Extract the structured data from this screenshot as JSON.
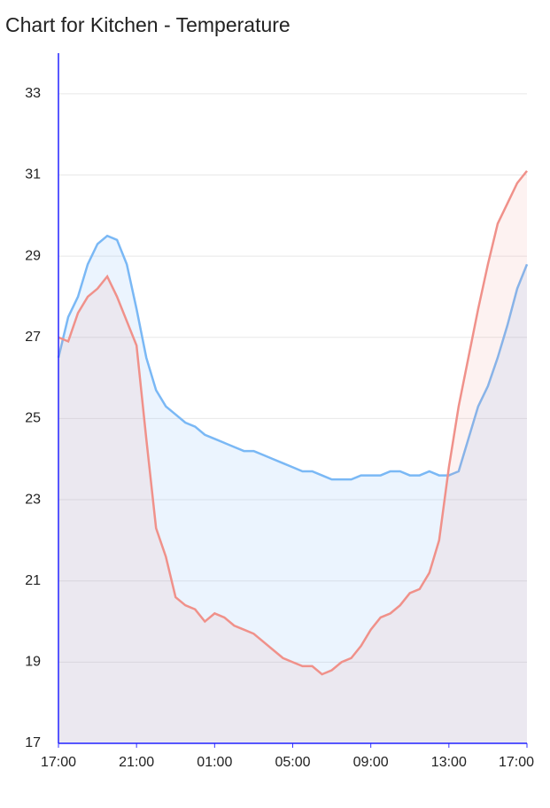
{
  "chart_data": {
    "type": "area",
    "title": "Chart for Kitchen - Temperature",
    "x": [
      0,
      0.5,
      1,
      1.5,
      2,
      2.5,
      3,
      3.5,
      4,
      4.5,
      5,
      5.5,
      6,
      6.5,
      7,
      7.5,
      8,
      8.5,
      9,
      9.5,
      10,
      10.5,
      11,
      11.5,
      12,
      12.5,
      13,
      13.5,
      14,
      14.5,
      15,
      15.5,
      16,
      16.5,
      17,
      17.5,
      18,
      18.5,
      19,
      19.5,
      20,
      20.5,
      21,
      21.5,
      22,
      22.5,
      23,
      23.5,
      24
    ],
    "xlim": [
      0,
      24
    ],
    "xticks": [
      {
        "value": 0,
        "label": "17:00"
      },
      {
        "value": 4,
        "label": "21:00"
      },
      {
        "value": 8,
        "label": "01:00"
      },
      {
        "value": 12,
        "label": "05:00"
      },
      {
        "value": 16,
        "label": "09:00"
      },
      {
        "value": 20,
        "label": "13:00"
      },
      {
        "value": 24,
        "label": "17:00"
      }
    ],
    "ylim": [
      17,
      34
    ],
    "yticks": [
      17,
      19,
      21,
      23,
      25,
      27,
      29,
      31,
      33
    ],
    "grid": true,
    "series": [
      {
        "color": "#7ab8f5",
        "fill": "rgba(122,184,245,0.15)",
        "values": [
          26.5,
          27.5,
          28.0,
          28.8,
          29.3,
          29.5,
          29.4,
          28.8,
          27.7,
          26.5,
          25.7,
          25.3,
          25.1,
          24.9,
          24.8,
          24.6,
          24.5,
          24.4,
          24.3,
          24.2,
          24.2,
          24.1,
          24.0,
          23.9,
          23.8,
          23.7,
          23.7,
          23.6,
          23.5,
          23.5,
          23.5,
          23.6,
          23.6,
          23.6,
          23.7,
          23.7,
          23.6,
          23.6,
          23.7,
          23.6,
          23.6,
          23.7,
          24.5,
          25.3,
          25.8,
          26.5,
          27.3,
          28.2,
          28.8
        ]
      },
      {
        "color": "#f0918a",
        "fill": "rgba(240,145,138,0.12)",
        "values": [
          27.0,
          26.9,
          27.6,
          28.0,
          28.2,
          28.5,
          28.0,
          27.4,
          26.8,
          24.5,
          22.3,
          21.6,
          20.6,
          20.4,
          20.3,
          20.0,
          20.2,
          20.1,
          19.9,
          19.8,
          19.7,
          19.5,
          19.3,
          19.1,
          19.0,
          18.9,
          18.9,
          18.7,
          18.8,
          19.0,
          19.1,
          19.4,
          19.8,
          20.1,
          20.2,
          20.4,
          20.7,
          20.8,
          21.2,
          22.0,
          23.8,
          25.3,
          26.5,
          27.7,
          28.8,
          29.8,
          30.3,
          30.8,
          31.1
        ]
      }
    ]
  }
}
